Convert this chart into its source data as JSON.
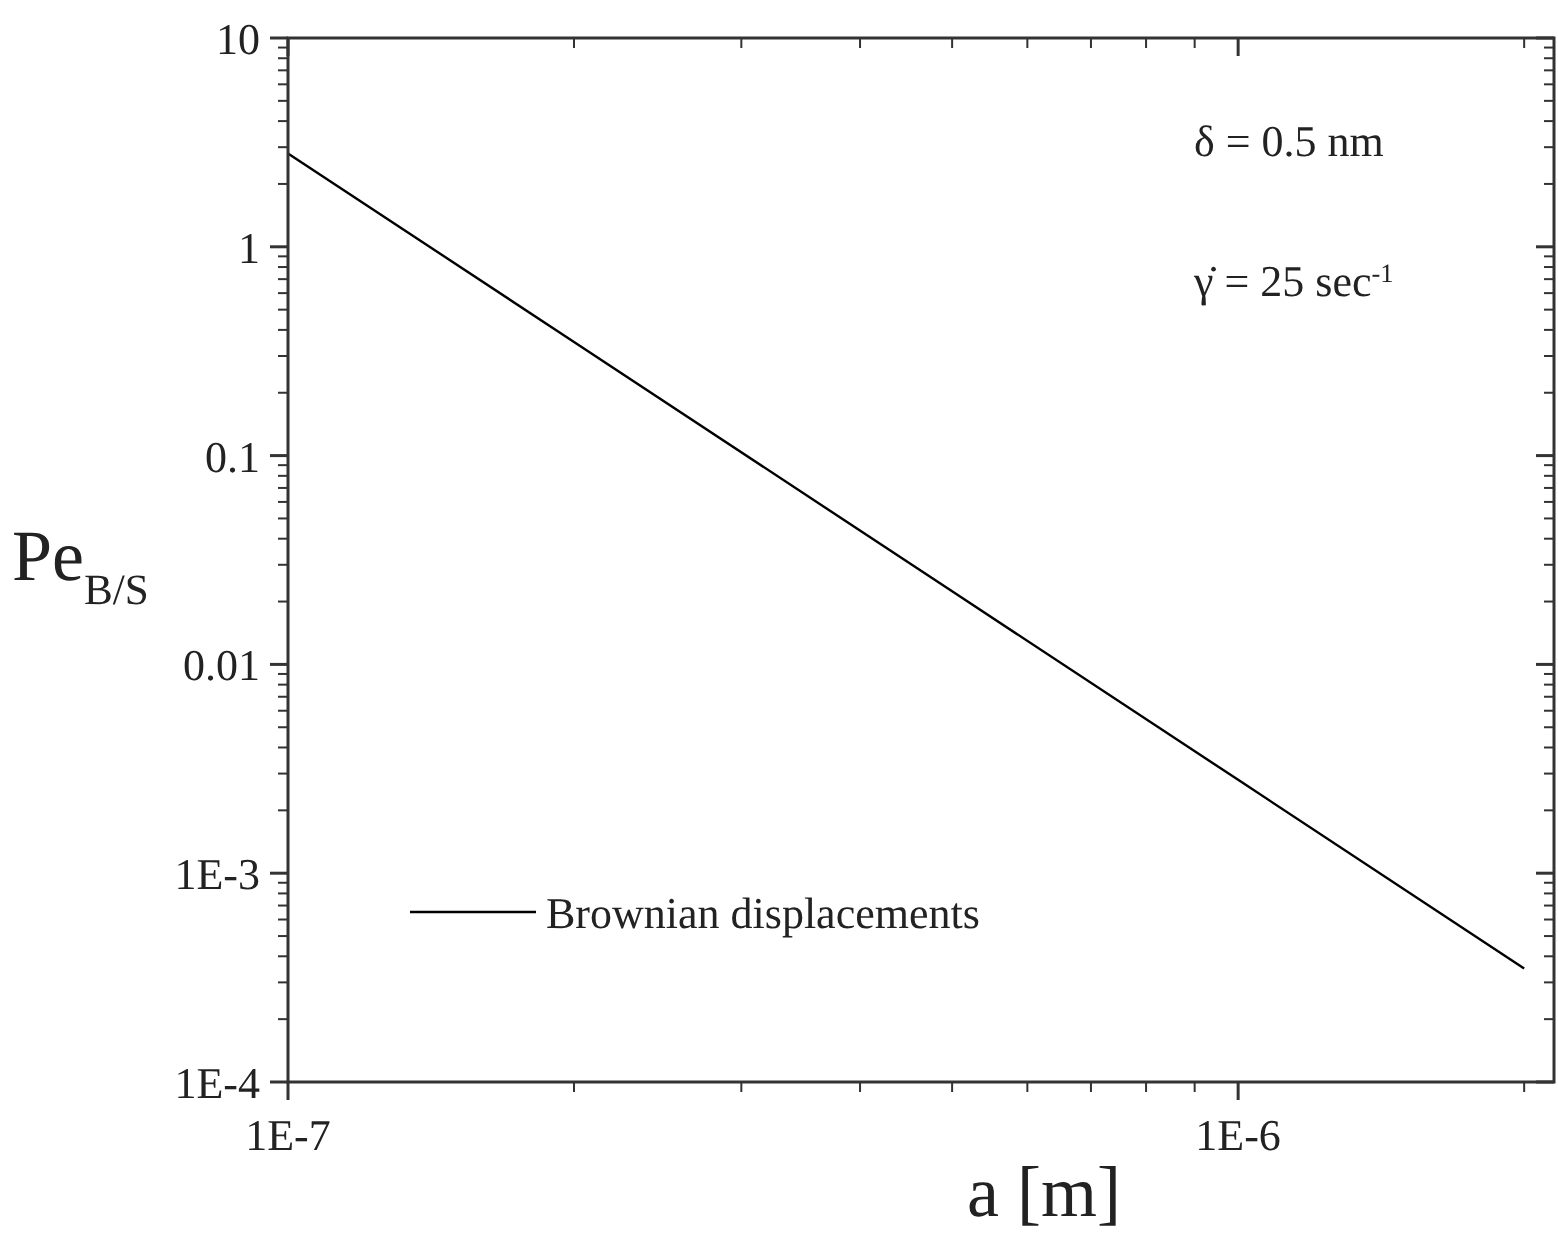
{
  "chart_data": {
    "type": "line",
    "xlabel": "a [m]",
    "ylabel": "Pe$_{B/S}$",
    "log": "xy",
    "xlim": [
      1e-07,
      2.15e-06
    ],
    "ylim": [
      0.0001,
      10
    ],
    "xticks": [
      {
        "value": 1e-07,
        "label": "1E-7"
      },
      {
        "value": 1e-06,
        "label": "1E-6"
      }
    ],
    "yticks": [
      {
        "value": 0.0001,
        "label": "1E-4"
      },
      {
        "value": 0.001,
        "label": "1E-3"
      },
      0.01,
      0.1,
      1,
      10
    ],
    "x": [
      1e-07,
      2e-07,
      5e-07,
      1e-06,
      2e-06
    ],
    "series": [
      {
        "name": "Brownian displacements",
        "color": "#000000",
        "values": [
          2.8,
          0.35,
          0.0224,
          0.0028,
          0.00035
        ]
      }
    ],
    "legend": "bottom left",
    "grid": false,
    "marker": "none",
    "line_style": "solid",
    "annotations": [
      "δ = 0.5 nm",
      "γ̇ = 25 sec$^{-1}$"
    ]
  }
}
